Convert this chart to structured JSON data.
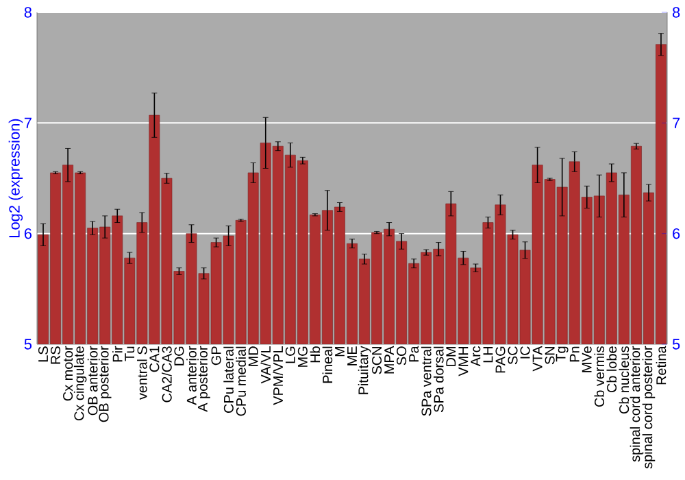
{
  "chart_data": {
    "type": "bar",
    "ylabel": "Log2 (expression)",
    "categories": [
      "LS",
      "RS",
      "Cx motor",
      "Cx cingulate",
      "OB anterior",
      "OB posterior",
      "Pir",
      "Tu",
      "ventral S",
      "CA1",
      "CA2/CA3",
      "DG",
      "A anterior",
      "A posterior",
      "GP",
      "CPu lateral",
      "CPu medial",
      "MD",
      "VA/VL",
      "VPM/VPL",
      "LG",
      "MG",
      "Hb",
      "Pineal",
      "M",
      "ME",
      "Pituitary",
      "SCN",
      "MPA",
      "SO",
      "Pa",
      "SPa ventral",
      "SPa dorsal",
      "DM",
      "VMH",
      "Arc",
      "LH",
      "PAG",
      "SC",
      "IC",
      "VTA",
      "SN",
      "Tg",
      "Pn",
      "MVe",
      "Cb vermis",
      "Cb lobe",
      "Cb nucleus",
      "spinal cord anterior",
      "spinal cord posterior",
      "Retina"
    ],
    "values": [
      5.99,
      6.55,
      6.62,
      6.55,
      6.05,
      6.06,
      6.16,
      5.78,
      6.1,
      7.07,
      6.5,
      5.66,
      6.0,
      5.64,
      5.92,
      5.98,
      6.12,
      6.55,
      6.82,
      6.79,
      6.71,
      6.66,
      6.17,
      6.21,
      6.24,
      5.91,
      5.77,
      6.01,
      6.04,
      5.93,
      5.73,
      5.83,
      5.86,
      6.27,
      5.78,
      5.69,
      6.1,
      6.26,
      5.99,
      5.85,
      6.62,
      6.49,
      6.42,
      6.65,
      6.33,
      6.34,
      6.55,
      6.35,
      6.79,
      6.37,
      7.71
    ],
    "errors": [
      0.1,
      0.01,
      0.15,
      0.01,
      0.06,
      0.1,
      0.06,
      0.05,
      0.09,
      0.2,
      0.045,
      0.03,
      0.08,
      0.05,
      0.04,
      0.09,
      0.01,
      0.09,
      0.23,
      0.04,
      0.11,
      0.03,
      0.01,
      0.18,
      0.04,
      0.04,
      0.045,
      0.01,
      0.06,
      0.07,
      0.04,
      0.025,
      0.06,
      0.11,
      0.06,
      0.035,
      0.05,
      0.09,
      0.04,
      0.075,
      0.16,
      0.01,
      0.26,
      0.09,
      0.1,
      0.19,
      0.08,
      0.2,
      0.025,
      0.075,
      0.1
    ],
    "color": "#b03030",
    "ylim": [
      5,
      8
    ],
    "yticks": [
      5,
      6,
      7,
      8
    ],
    "y2lim": [
      5,
      8
    ],
    "y2ticks": [
      5,
      6,
      7,
      8
    ],
    "grid": "y"
  }
}
